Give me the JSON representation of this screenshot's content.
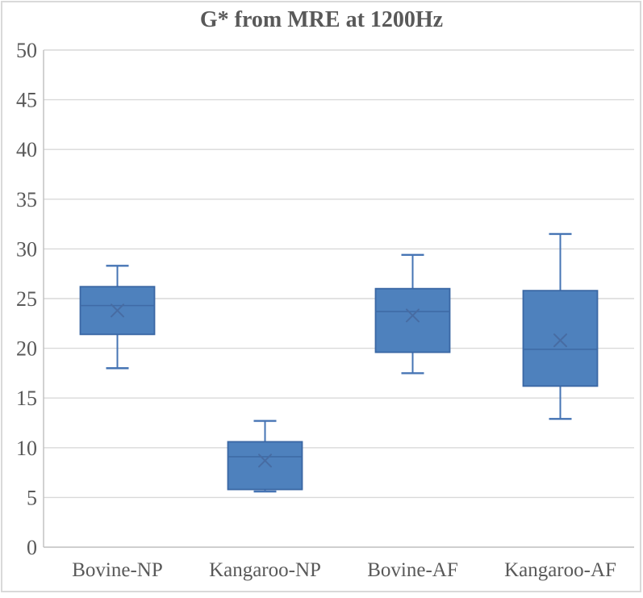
{
  "chart_data": {
    "type": "boxplot",
    "title": "G* from MRE at 1200Hz",
    "categories": [
      "Bovine-NP",
      "Kangaroo-NP",
      "Bovine-AF",
      "Kangaroo-AF"
    ],
    "series": [
      {
        "category": "Bovine-NP",
        "whisker_low": 18.0,
        "q1": 21.4,
        "median": 24.3,
        "mean": 23.8,
        "q3": 26.2,
        "whisker_high": 28.3
      },
      {
        "category": "Kangaroo-NP",
        "whisker_low": 5.6,
        "q1": 5.8,
        "median": 9.1,
        "mean": 8.7,
        "q3": 10.6,
        "whisker_high": 12.7
      },
      {
        "category": "Bovine-AF",
        "whisker_low": 17.5,
        "q1": 19.6,
        "median": 23.7,
        "mean": 23.3,
        "q3": 26.0,
        "whisker_high": 29.4
      },
      {
        "category": "Kangaroo-AF",
        "whisker_low": 12.9,
        "q1": 16.2,
        "median": 19.9,
        "mean": 20.8,
        "q3": 25.8,
        "whisker_high": 31.5
      }
    ],
    "xlabel": "",
    "ylabel": "",
    "ylim": [
      0,
      50
    ],
    "y_ticks": [
      0,
      5,
      10,
      15,
      20,
      25,
      30,
      35,
      40,
      45,
      50
    ],
    "grid": true,
    "legend": "none",
    "mean_marker": "x",
    "colors": {
      "box_fill": "#4E81BD",
      "box_border": "#3A67A4",
      "whisker_line": "#4674B4",
      "median_line": "#3F6BA6",
      "mean_marker": "#476CA3",
      "gridline": "#D9D9D9",
      "axis_line": "#BFBFBF",
      "tick_text": "#595959",
      "title_text": "#595959",
      "frame_border": "#D9D9D9"
    }
  }
}
